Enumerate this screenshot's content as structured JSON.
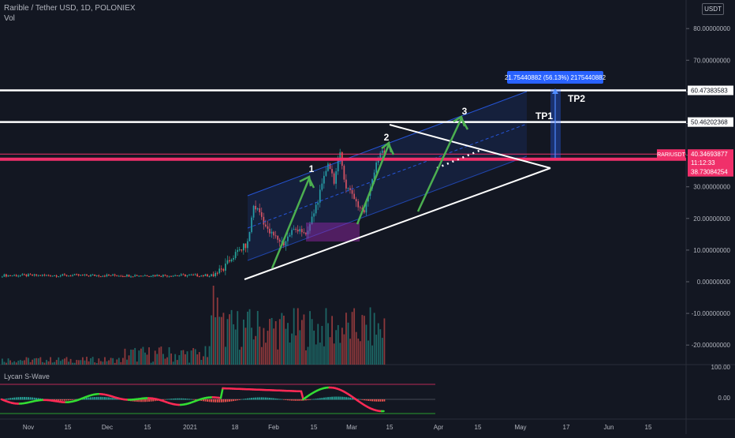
{
  "header": {
    "title": "Rarible / Tether USD, 1D, POLONIEX",
    "vol_label": "Vol",
    "currency": "USDT"
  },
  "indicator": {
    "label": "Lycan S-Wave",
    "ticks": [
      "100.00",
      "0.00"
    ]
  },
  "colors": {
    "background": "#131722",
    "up": "#26a69a",
    "down": "#ef5350",
    "pink_line": "#f0306a",
    "wave_up": "#33dd33",
    "wave_down": "#ff2a55",
    "pattern": "#4caf50"
  },
  "price_badges": {
    "current": "40.34693877",
    "countdown": "11:12:33",
    "symbol": "RARIUSDT",
    "support": "38.73084254",
    "tp1_level": "50.46202368",
    "tp2_level": "60.47383583"
  },
  "measure_label": "21.75440882 (56.13%) 2175440882",
  "annotations": {
    "tp1": "TP1",
    "tp2": "TP2",
    "wave1": "1",
    "wave2": "2",
    "wave3": "3"
  },
  "chart_data": {
    "type": "candlestick",
    "title": "Rarible / Tether USD, 1D, POLONIEX",
    "y_axis_ticks": [
      "80.00000000",
      "70.00000000",
      "60.00000000",
      "50.00000000",
      "40.00000000",
      "30.00000000",
      "20.00000000",
      "10.00000000",
      "0.00000000",
      "-10.00000000",
      "-20.00000000"
    ],
    "x_axis_ticks": [
      "Nov",
      "15",
      "Dec",
      "15",
      "2021",
      "18",
      "Feb",
      "15",
      "Mar",
      "15",
      "Apr",
      "15",
      "May",
      "17",
      "Jun",
      "15"
    ],
    "ylim": [
      -25,
      85
    ],
    "horizontal_levels": [
      60.47383583,
      50.46202368,
      40.34693877,
      38.73084254
    ],
    "target_move": 21.75440882,
    "target_move_pct": 56.13,
    "candles_ohlc_sample": [
      [
        2,
        2.5,
        1.6,
        2.1
      ],
      [
        2.1,
        8,
        2,
        7.5
      ],
      [
        7.5,
        12,
        6,
        11
      ],
      [
        11,
        28,
        10,
        24
      ],
      [
        24,
        26,
        14,
        16
      ],
      [
        16,
        18,
        10,
        12
      ],
      [
        12,
        32,
        11,
        30
      ],
      [
        30,
        40,
        24,
        36
      ],
      [
        36,
        38,
        26,
        28
      ],
      [
        28,
        30,
        18,
        20
      ],
      [
        20,
        34,
        19,
        32
      ],
      [
        32,
        43,
        30,
        40.3
      ]
    ]
  }
}
